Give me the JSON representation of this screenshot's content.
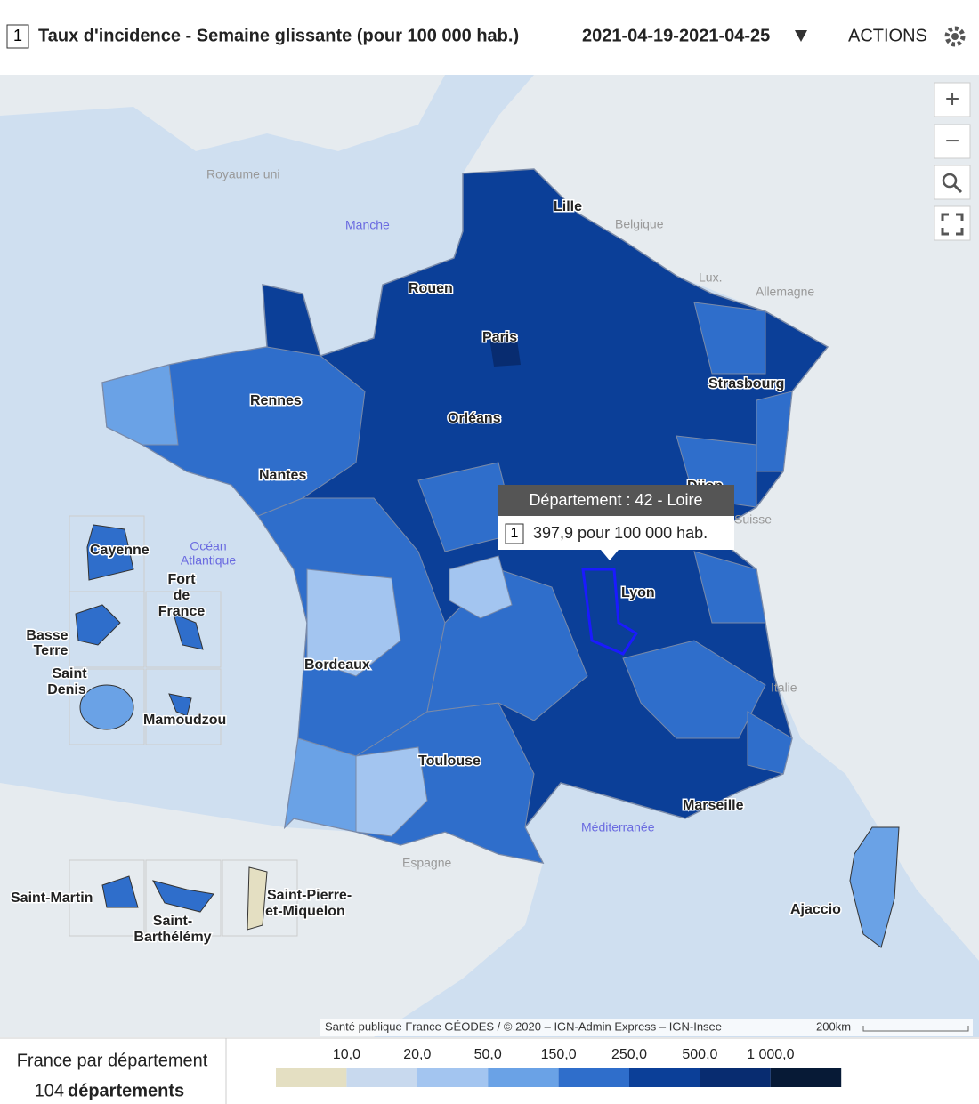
{
  "header": {
    "badge": "1",
    "title": "Taux d'incidence - Semaine glissante (pour 100 000 hab.)",
    "period": "2021-04-19-2021-04-25",
    "actions": "ACTIONS"
  },
  "map": {
    "controls": [
      "+",
      "−"
    ],
    "cities": [
      "Lille",
      "Rouen",
      "Paris",
      "Strasbourg",
      "Rennes",
      "Orléans",
      "Nantes",
      "Dijon",
      "Lyon",
      "Bordeaux",
      "Toulouse",
      "Marseille",
      "Ajaccio"
    ],
    "countries": [
      "Royaume uni",
      "Belgique",
      "Lux.",
      "Allemagne",
      "Suisse",
      "Italie",
      "Espagne"
    ],
    "seas": [
      "Manche",
      "Océan",
      "Atlantique",
      "Méditerranée"
    ],
    "overseas": [
      "Cayenne",
      "Fort",
      "de",
      "France",
      "Basse",
      "Terre",
      "Saint",
      "Denis",
      "Mamoudzou",
      "Saint-Martin",
      "Saint-",
      "Barthélémy",
      "Saint-Pierre-",
      "et-Miquelon"
    ],
    "tooltip": {
      "title": "Département : 42 - Loire",
      "badge": "1",
      "value": "397,9 pour 100 000 hab."
    },
    "attribution": "Santé publique France GÉODES / © 2020 – IGN-Admin Express – IGN-Insee",
    "scale": "200km"
  },
  "footer": {
    "scope": "France par département",
    "count": "104",
    "count_label": "départements"
  },
  "legend": {
    "labels": [
      "10,0",
      "20,0",
      "50,0",
      "150,0",
      "250,0",
      "500,0",
      "1 000,0"
    ],
    "colors": [
      "#e4dfc2",
      "#c8d9ee",
      "#a3c5f0",
      "#6aa2e6",
      "#2f6ecb",
      "#0b3f98",
      "#082c70",
      "#071a36"
    ]
  }
}
